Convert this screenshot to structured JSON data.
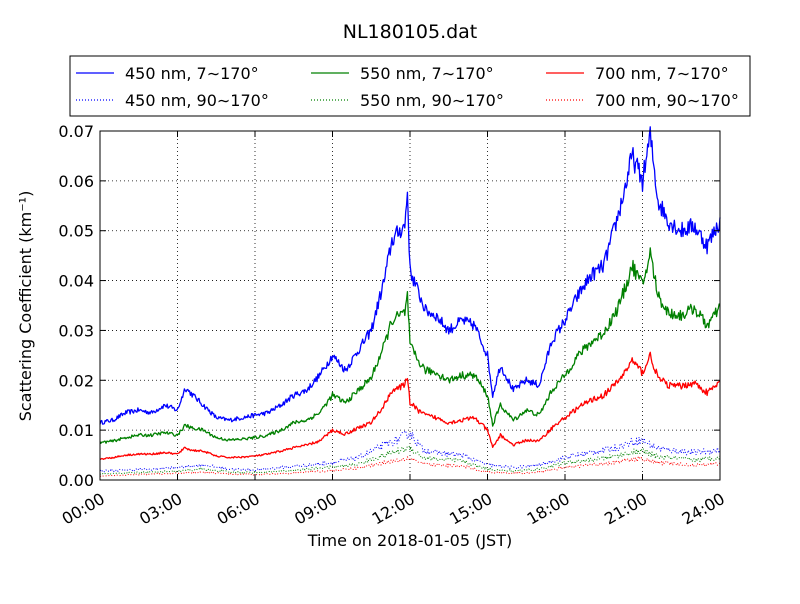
{
  "chart_data": {
    "type": "line",
    "title": "NL180105.dat",
    "xlabel": "Time on 2018-01-05 (JST)",
    "ylabel": "Scattering Coefficient (km⁻¹)",
    "x_unit": "hour",
    "xlim": [
      0,
      24
    ],
    "ylim": [
      0,
      0.07
    ],
    "xticks": [
      0,
      3,
      6,
      9,
      12,
      15,
      18,
      21,
      24
    ],
    "xtick_labels": [
      "00:00",
      "03:00",
      "06:00",
      "09:00",
      "12:00",
      "15:00",
      "18:00",
      "21:00",
      "24:00"
    ],
    "yticks": [
      0,
      0.01,
      0.02,
      0.03,
      0.04,
      0.05,
      0.06,
      0.07
    ],
    "ytick_labels": [
      "0.00",
      "0.01",
      "0.02",
      "0.03",
      "0.04",
      "0.05",
      "0.06",
      "0.07"
    ],
    "grid": true,
    "legend_position": "top, above plot, 3 columns",
    "series": [
      {
        "name": "450 nm, 7∼170°",
        "color": "#0000ff",
        "style": "solid",
        "x": [
          0,
          0.5,
          1,
          1.5,
          2,
          2.5,
          3,
          3.2,
          3.3,
          3.4,
          3.5,
          4,
          4.5,
          5,
          5.5,
          6,
          6.5,
          7,
          7.5,
          8,
          8.5,
          9,
          9.5,
          10,
          10.5,
          11,
          11.3,
          11.6,
          11.8,
          11.9,
          12,
          12.3,
          12.6,
          13,
          13.5,
          14,
          14.5,
          15,
          15.2,
          15.5,
          16,
          16.5,
          17,
          17.5,
          18,
          18.5,
          19,
          19.5,
          20,
          20.3,
          20.6,
          21,
          21.3,
          21.6,
          22,
          22.5,
          23,
          23.5,
          24
        ],
        "y": [
          0.0115,
          0.012,
          0.0135,
          0.014,
          0.0135,
          0.015,
          0.014,
          0.017,
          0.0185,
          0.018,
          0.0175,
          0.015,
          0.0125,
          0.012,
          0.0125,
          0.013,
          0.0135,
          0.015,
          0.017,
          0.018,
          0.021,
          0.025,
          0.022,
          0.026,
          0.03,
          0.04,
          0.048,
          0.05,
          0.051,
          0.058,
          0.042,
          0.038,
          0.034,
          0.033,
          0.03,
          0.032,
          0.031,
          0.025,
          0.017,
          0.023,
          0.018,
          0.02,
          0.019,
          0.028,
          0.032,
          0.037,
          0.041,
          0.043,
          0.052,
          0.058,
          0.065,
          0.06,
          0.069,
          0.056,
          0.052,
          0.05,
          0.051,
          0.047,
          0.052
        ]
      },
      {
        "name": "450 nm, 90∼170°",
        "color": "#0000ff",
        "style": "dotted",
        "x": [
          0,
          1,
          2,
          3,
          4,
          5,
          6,
          7,
          8,
          9,
          10,
          11,
          11.5,
          12,
          12.5,
          13,
          14,
          15,
          16,
          17,
          18,
          19,
          20,
          20.5,
          21,
          21.5,
          22,
          23,
          24
        ],
        "y": [
          0.0018,
          0.002,
          0.0022,
          0.0025,
          0.003,
          0.0022,
          0.002,
          0.0025,
          0.003,
          0.0035,
          0.0045,
          0.007,
          0.008,
          0.0095,
          0.006,
          0.0055,
          0.005,
          0.003,
          0.0025,
          0.003,
          0.0045,
          0.0055,
          0.0065,
          0.0075,
          0.008,
          0.0065,
          0.006,
          0.0055,
          0.006
        ]
      },
      {
        "name": "550 nm, 7∼170°",
        "color": "#008000",
        "style": "solid",
        "x": [
          0,
          0.5,
          1,
          1.5,
          2,
          2.5,
          3,
          3.3,
          3.5,
          4,
          4.5,
          5,
          5.5,
          6,
          6.5,
          7,
          7.5,
          8,
          8.5,
          9,
          9.5,
          10,
          10.5,
          11,
          11.3,
          11.6,
          11.8,
          11.9,
          12,
          12.3,
          12.6,
          13,
          13.5,
          14,
          14.5,
          15,
          15.2,
          15.5,
          16,
          16.5,
          17,
          17.5,
          18,
          18.5,
          19,
          19.5,
          20,
          20.3,
          20.6,
          21,
          21.3,
          21.6,
          22,
          22.5,
          23,
          23.5,
          24
        ],
        "y": [
          0.0075,
          0.0078,
          0.0085,
          0.009,
          0.009,
          0.0095,
          0.009,
          0.011,
          0.0105,
          0.01,
          0.0085,
          0.008,
          0.0082,
          0.0085,
          0.009,
          0.01,
          0.0115,
          0.012,
          0.0135,
          0.017,
          0.0155,
          0.018,
          0.0205,
          0.027,
          0.032,
          0.033,
          0.0335,
          0.037,
          0.027,
          0.024,
          0.022,
          0.0215,
          0.02,
          0.021,
          0.021,
          0.017,
          0.011,
          0.015,
          0.012,
          0.014,
          0.013,
          0.018,
          0.021,
          0.025,
          0.0275,
          0.0295,
          0.034,
          0.038,
          0.043,
          0.039,
          0.0455,
          0.037,
          0.0335,
          0.033,
          0.0345,
          0.031,
          0.0345
        ]
      },
      {
        "name": "550 nm, 90∼170°",
        "color": "#008000",
        "style": "dotted",
        "x": [
          0,
          1,
          2,
          3,
          4,
          5,
          6,
          7,
          8,
          9,
          10,
          11,
          11.5,
          12,
          12.5,
          13,
          14,
          15,
          16,
          17,
          18,
          19,
          20,
          20.5,
          21,
          21.5,
          22,
          23,
          24
        ],
        "y": [
          0.0012,
          0.0014,
          0.0016,
          0.0018,
          0.0022,
          0.0016,
          0.0015,
          0.0018,
          0.0022,
          0.0026,
          0.0032,
          0.005,
          0.0058,
          0.0065,
          0.0045,
          0.0042,
          0.0038,
          0.0022,
          0.0018,
          0.0022,
          0.0034,
          0.004,
          0.0048,
          0.0055,
          0.0058,
          0.0048,
          0.0045,
          0.004,
          0.0045
        ]
      },
      {
        "name": "700 nm, 7∼170°",
        "color": "#ff0000",
        "style": "solid",
        "x": [
          0,
          0.5,
          1,
          1.5,
          2,
          2.5,
          3,
          3.3,
          3.5,
          4,
          4.5,
          5,
          5.5,
          6,
          6.5,
          7,
          7.5,
          8,
          8.5,
          9,
          9.5,
          10,
          10.5,
          11,
          11.3,
          11.6,
          11.8,
          11.9,
          12,
          12.3,
          12.6,
          13,
          13.5,
          14,
          14.5,
          15,
          15.2,
          15.5,
          16,
          16.5,
          17,
          17.5,
          18,
          18.5,
          19,
          19.5,
          20,
          20.3,
          20.6,
          21,
          21.3,
          21.6,
          22,
          22.5,
          23,
          23.5,
          24
        ],
        "y": [
          0.0042,
          0.0045,
          0.005,
          0.0052,
          0.0052,
          0.0055,
          0.0052,
          0.0065,
          0.006,
          0.0058,
          0.0048,
          0.0045,
          0.0046,
          0.0048,
          0.0052,
          0.0058,
          0.0065,
          0.007,
          0.0078,
          0.01,
          0.0092,
          0.0105,
          0.0115,
          0.015,
          0.018,
          0.0185,
          0.019,
          0.021,
          0.0155,
          0.014,
          0.013,
          0.0125,
          0.0115,
          0.012,
          0.0125,
          0.01,
          0.0065,
          0.009,
          0.007,
          0.008,
          0.0078,
          0.0105,
          0.0125,
          0.0145,
          0.016,
          0.017,
          0.0195,
          0.0215,
          0.024,
          0.0215,
          0.025,
          0.0205,
          0.019,
          0.0188,
          0.0195,
          0.0175,
          0.0195
        ]
      },
      {
        "name": "700 nm, 90∼170°",
        "color": "#ff0000",
        "style": "dotted",
        "x": [
          0,
          1,
          2,
          3,
          4,
          5,
          6,
          7,
          8,
          9,
          10,
          11,
          11.5,
          12,
          12.5,
          13,
          14,
          15,
          16,
          17,
          18,
          19,
          20,
          20.5,
          21,
          21.5,
          22,
          23,
          24
        ],
        "y": [
          0.0008,
          0.001,
          0.0012,
          0.0013,
          0.0016,
          0.0012,
          0.0011,
          0.0013,
          0.0016,
          0.0019,
          0.0024,
          0.0035,
          0.004,
          0.0045,
          0.0032,
          0.003,
          0.0028,
          0.0016,
          0.0013,
          0.0016,
          0.0025,
          0.003,
          0.0036,
          0.004,
          0.0042,
          0.0035,
          0.0033,
          0.003,
          0.0033
        ]
      }
    ]
  }
}
